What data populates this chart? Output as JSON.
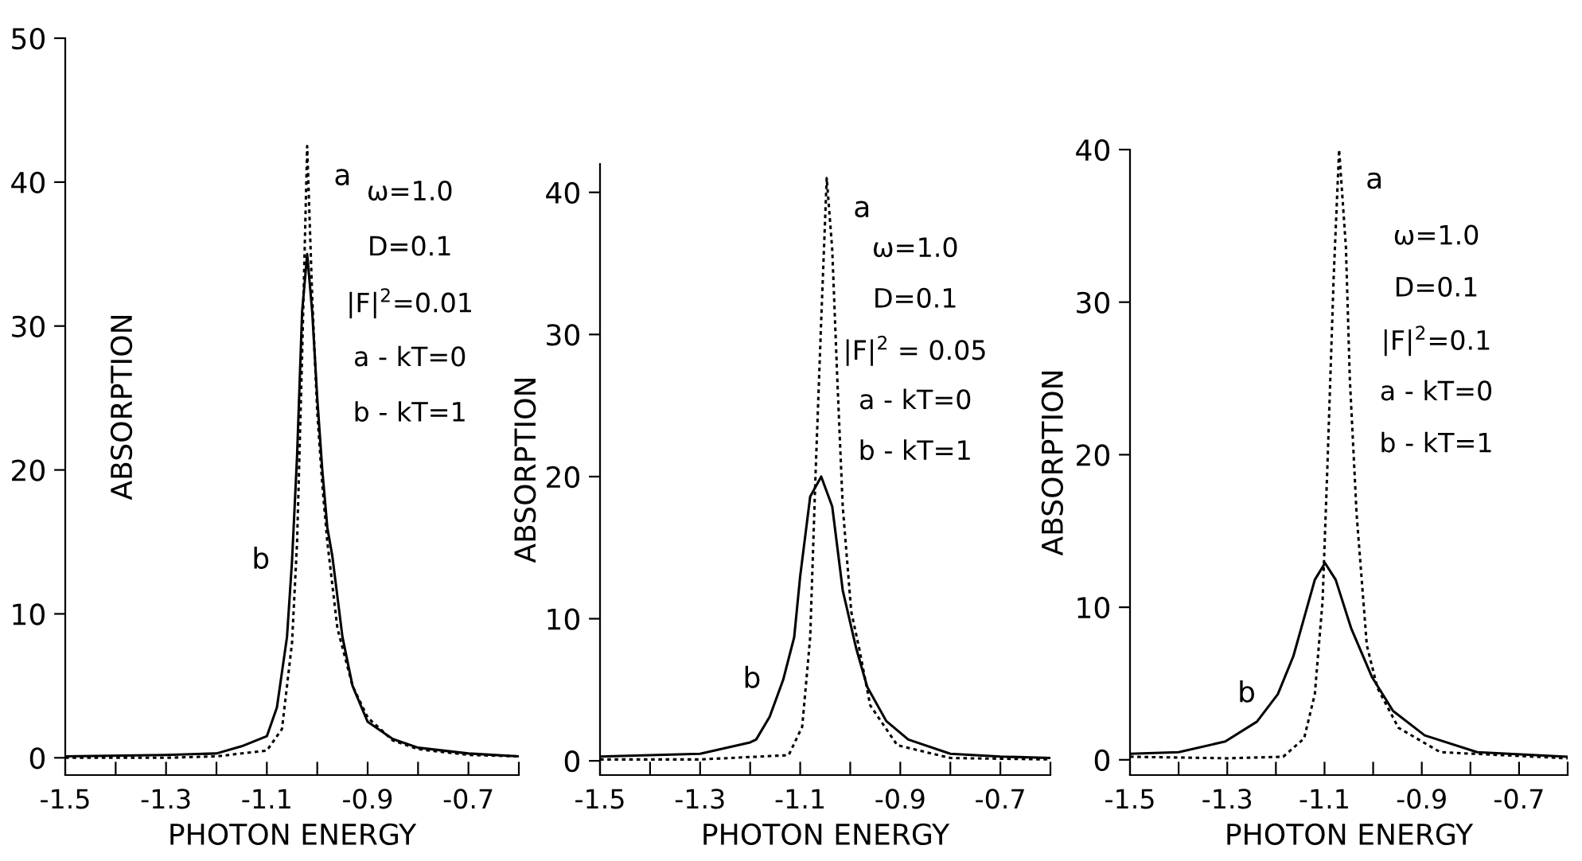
{
  "chart_data": [
    {
      "type": "line",
      "xlabel": "PHOTON ENERGY",
      "ylabel": "ABSORPTION",
      "xlim": [
        -1.5,
        -0.6
      ],
      "ylim": [
        -1.2,
        50
      ],
      "xticks": [
        -1.5,
        {
          "value": -1.4,
          "label": null
        },
        -1.3,
        {
          "value": -1.2,
          "label": null
        },
        -1.1,
        {
          "value": -1.0,
          "label": null
        },
        -0.9,
        {
          "value": -0.8,
          "label": null
        },
        -0.7,
        {
          "value": -0.6,
          "label": null
        }
      ],
      "yticks": [
        0,
        10,
        20,
        30,
        40,
        50
      ],
      "grid": false,
      "legend": false,
      "series": [
        {
          "name": "a",
          "color": "#000000",
          "line_style": "dotted",
          "x": [
            -1.5,
            -1.3,
            -1.2,
            -1.1,
            -1.07,
            -1.05,
            -1.04,
            -1.03,
            -1.02,
            -1.01,
            -1.0,
            -0.99,
            -0.98,
            -0.96,
            -0.93,
            -0.9,
            -0.85,
            -0.8,
            -0.7,
            -0.6
          ],
          "values": [
            0,
            0,
            0.1,
            0.5,
            2,
            8,
            15,
            28,
            42.5,
            32,
            24,
            19,
            15,
            9,
            5,
            2.8,
            1.2,
            0.6,
            0.2,
            0.1
          ]
        },
        {
          "name": "b",
          "color": "#000000",
          "line_style": "solid",
          "x": [
            -1.5,
            -1.3,
            -1.2,
            -1.15,
            -1.1,
            -1.08,
            -1.06,
            -1.05,
            -1.04,
            -1.03,
            -1.02,
            -1.01,
            -1.0,
            -0.99,
            -0.98,
            -0.97,
            -0.95,
            -0.93,
            -0.9,
            -0.85,
            -0.8,
            -0.7,
            -0.6
          ],
          "values": [
            0.1,
            0.2,
            0.3,
            0.8,
            1.5,
            3.5,
            8.4,
            13.7,
            21,
            31,
            35,
            31,
            25,
            20,
            16,
            14,
            8.4,
            5,
            2.5,
            1.3,
            0.7,
            0.3,
            0.1
          ]
        }
      ],
      "annotations": [
        "ω=1.0",
        "D=0.1",
        "|F|$^{2}$=0.01",
        "a - kT=0",
        "b - kT=1"
      ]
    },
    {
      "type": "line",
      "xlabel": "PHOTON ENERGY",
      "ylabel": "ABSORPTION",
      "xlim": [
        -1.5,
        -0.6
      ],
      "ylim": [
        -1,
        42
      ],
      "xticks": [
        -1.5,
        {
          "value": -1.4,
          "label": null
        },
        -1.3,
        {
          "value": -1.2,
          "label": null
        },
        -1.1,
        {
          "value": -1.0,
          "label": null
        },
        -0.9,
        {
          "value": -0.8,
          "label": null
        },
        -0.7,
        {
          "value": -0.6,
          "label": null
        }
      ],
      "yticks": [
        0,
        10,
        20,
        30,
        40
      ],
      "grid": false,
      "legend": false,
      "series": [
        {
          "name": "a",
          "color": "#000000",
          "line_style": "dotted",
          "x": [
            -1.5,
            -1.3,
            -1.123,
            -1.096,
            -1.08,
            -1.069,
            -1.058,
            -1.047,
            -1.036,
            -1.026,
            -1.015,
            -0.998,
            -0.982,
            -0.96,
            -0.906,
            -0.8,
            -0.6
          ],
          "values": [
            0.1,
            0.1,
            0.4,
            2.4,
            8.7,
            20.5,
            31,
            41,
            36,
            27,
            17.9,
            10.5,
            7.9,
            3.9,
            1.1,
            0.2,
            0.1
          ]
        },
        {
          "name": "b",
          "color": "#000000",
          "line_style": "solid",
          "x": [
            -1.5,
            -1.4,
            -1.3,
            -1.2,
            -1.188,
            -1.161,
            -1.134,
            -1.112,
            -1.1,
            -1.08,
            -1.058,
            -1.036,
            -1.015,
            -0.988,
            -0.966,
            -0.928,
            -0.884,
            -0.8,
            -0.7,
            -0.6
          ],
          "values": [
            0.3,
            0.4,
            0.5,
            1.3,
            1.5,
            3.1,
            5.7,
            8.7,
            13,
            18.6,
            20,
            17.9,
            12,
            7.9,
            5.2,
            2.8,
            1.5,
            0.5,
            0.3,
            0.2
          ]
        }
      ],
      "annotations": [
        "ω=1.0",
        "D=0.1",
        "|F|$^{2}$ = 0.05",
        "a - kT=0",
        "b - kT=1"
      ]
    },
    {
      "type": "line",
      "xlabel": "PHOTON ENERGY",
      "ylabel": "ABSORPTION",
      "xlim": [
        -1.5,
        -0.6
      ],
      "ylim": [
        -1,
        40
      ],
      "xticks": [
        -1.5,
        {
          "value": -1.4,
          "label": null
        },
        -1.3,
        {
          "value": -1.2,
          "label": null
        },
        -1.1,
        {
          "value": -1.0,
          "label": null
        },
        -0.9,
        {
          "value": -0.8,
          "label": null
        },
        -0.7,
        {
          "value": -0.6,
          "label": null
        }
      ],
      "yticks": [
        0,
        10,
        20,
        30,
        40
      ],
      "grid": false,
      "legend": false,
      "series": [
        {
          "name": "a",
          "color": "#000000",
          "line_style": "dotted",
          "x": [
            -1.5,
            -1.3,
            -1.185,
            -1.142,
            -1.12,
            -1.104,
            -1.094,
            -1.081,
            -1.07,
            -1.056,
            -1.048,
            -1.034,
            -1.013,
            -0.991,
            -0.948,
            -0.862,
            -0.6
          ],
          "values": [
            0.2,
            0.1,
            0.2,
            1.4,
            4.3,
            10.4,
            19.3,
            31.8,
            40,
            33.6,
            25,
            16.1,
            7.5,
            4.7,
            2.1,
            0.5,
            0.1
          ]
        },
        {
          "name": "b",
          "color": "#000000",
          "line_style": "solid",
          "x": [
            -1.5,
            -1.4,
            -1.304,
            -1.239,
            -1.196,
            -1.164,
            -1.142,
            -1.12,
            -1.099,
            -1.077,
            -1.045,
            -1.002,
            -0.959,
            -0.894,
            -0.786,
            -0.6
          ],
          "values": [
            0.4,
            0.5,
            1.2,
            2.5,
            4.3,
            6.8,
            9.3,
            11.8,
            12.9,
            11.8,
            8.6,
            5.4,
            3.2,
            1.6,
            0.5,
            0.2
          ]
        }
      ],
      "annotations": [
        "ω=1.0",
        "D=0.1",
        "|F|$^{2}$=0.1",
        "a - kT=0",
        "b - kT=1"
      ]
    }
  ]
}
